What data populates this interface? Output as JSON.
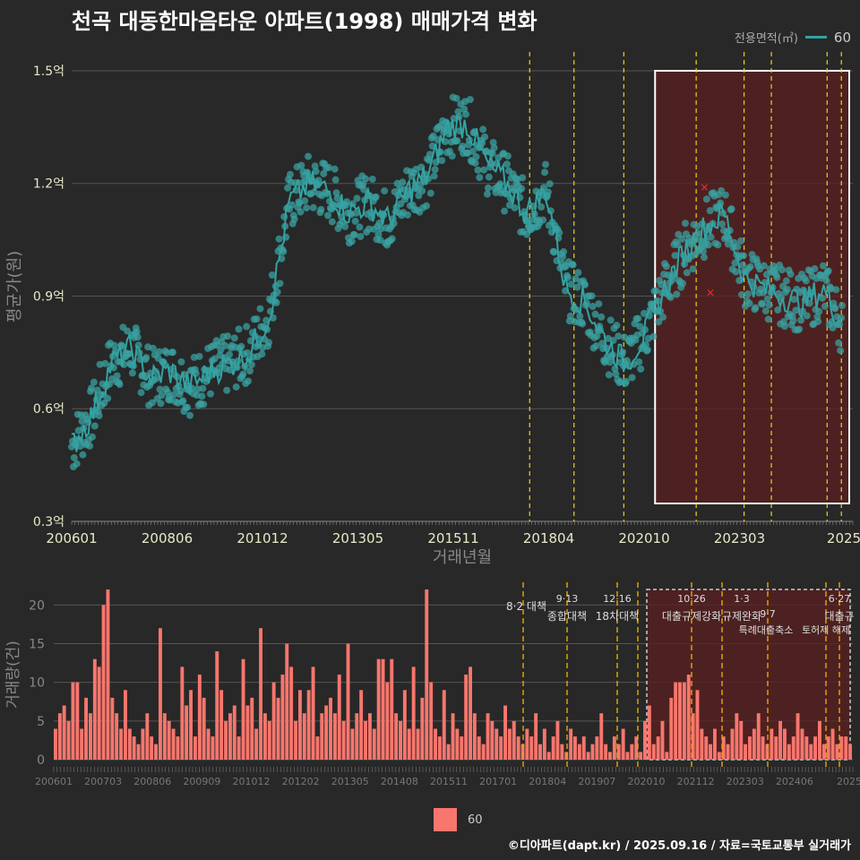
{
  "title": "천곡 대동한마음타운 아파트(1998) 매매가격 변화",
  "legend": {
    "title": "전용면적(㎡)",
    "label": "60"
  },
  "footer": "©디아파트(dapt.kr) / 2025.09.16 / 자료=국토교통부 실거래가",
  "colors": {
    "line": "#33a3a3",
    "point": "#3aa0a0",
    "bar": "#f8766d",
    "policy": "#e8d21d",
    "highlight": "#5a1f1f",
    "grid": "#555555"
  },
  "chart_data": [
    {
      "type": "line",
      "title": "천곡 대동한마음타운 아파트(1998) 매매가격 변화",
      "xlabel": "거래년월",
      "ylabel": "평균가(원)",
      "x_tick_labels": [
        "200601",
        "200806",
        "201012",
        "201305",
        "201511",
        "201804",
        "202010",
        "202303",
        "2025"
      ],
      "y_tick_labels": [
        "0.3억",
        "0.6억",
        "0.9억",
        "1.2억",
        "1.5억"
      ],
      "ylim": [
        0.3,
        1.55
      ],
      "xlim": [
        2006.0,
        2025.75
      ],
      "highlight_range": [
        2020.75,
        2025.75
      ],
      "policy_lines": [
        2017.58,
        2018.7,
        2019.96,
        2021.79,
        2023.0,
        2023.69,
        2025.1,
        2025.46
      ],
      "series": [
        {
          "name": "60",
          "x": [
            2006.0,
            2006.5,
            2007.0,
            2007.5,
            2008.0,
            2008.5,
            2009.0,
            2009.5,
            2010.0,
            2010.5,
            2011.0,
            2011.5,
            2012.0,
            2012.5,
            2013.0,
            2013.5,
            2014.0,
            2014.5,
            2015.0,
            2015.5,
            2016.0,
            2016.5,
            2017.0,
            2017.5,
            2018.0,
            2018.5,
            2019.0,
            2019.5,
            2020.0,
            2020.5,
            2021.0,
            2021.5,
            2022.0,
            2022.5,
            2023.0,
            2023.5,
            2024.0,
            2024.5,
            2025.0,
            2025.5
          ],
          "values": [
            0.5,
            0.58,
            0.72,
            0.76,
            0.68,
            0.7,
            0.66,
            0.7,
            0.72,
            0.75,
            0.85,
            1.15,
            1.2,
            1.18,
            1.12,
            1.15,
            1.1,
            1.18,
            1.22,
            1.35,
            1.36,
            1.25,
            1.2,
            1.12,
            1.18,
            0.92,
            0.88,
            0.78,
            0.72,
            0.8,
            0.92,
            1.02,
            1.08,
            1.12,
            0.95,
            0.92,
            0.9,
            0.88,
            0.92,
            0.82
          ]
        }
      ],
      "outliers": [
        {
          "x": 2022.0,
          "y": 1.19
        },
        {
          "x": 2022.15,
          "y": 0.91
        }
      ]
    },
    {
      "type": "bar",
      "ylabel": "거래량(건)",
      "x_tick_labels": [
        "200601",
        "200703",
        "200806",
        "200909",
        "201012",
        "201202",
        "201305",
        "201408",
        "201511",
        "201701",
        "201804",
        "201907",
        "202010",
        "202112",
        "202303",
        "202406",
        "2025"
      ],
      "y_tick_labels": [
        "0",
        "5",
        "10",
        "15",
        "20"
      ],
      "ylim": [
        0,
        22
      ],
      "series": [
        {
          "name": "60",
          "values": [
            4,
            6,
            7,
            5,
            10,
            10,
            4,
            8,
            6,
            13,
            12,
            20,
            22,
            8,
            6,
            4,
            9,
            4,
            3,
            2,
            4,
            6,
            3,
            2,
            17,
            6,
            5,
            4,
            3,
            12,
            7,
            9,
            3,
            11,
            8,
            4,
            3,
            14,
            9,
            5,
            6,
            7,
            3,
            13,
            7,
            8,
            4,
            17,
            6,
            5,
            10,
            8,
            11,
            15,
            12,
            5,
            9,
            6,
            9,
            12,
            3,
            6,
            7,
            8,
            6,
            11,
            5,
            15,
            4,
            6,
            9,
            5,
            6,
            4,
            13,
            13,
            10,
            13,
            6,
            5,
            9,
            4,
            12,
            4,
            8,
            22,
            10,
            4,
            3,
            9,
            2,
            6,
            4,
            3,
            11,
            12,
            6,
            3,
            2,
            6,
            5,
            4,
            3,
            7,
            4,
            5,
            3,
            2,
            4,
            3,
            6,
            2,
            4,
            1,
            3,
            5,
            2,
            1,
            4,
            3,
            2,
            3,
            1,
            2,
            3,
            6,
            2,
            1,
            3,
            2,
            4,
            1,
            2,
            3,
            1,
            5,
            7,
            2,
            3,
            5,
            1,
            8,
            10,
            10,
            10,
            11,
            6,
            9,
            4,
            3,
            2,
            4,
            1,
            3,
            2,
            4,
            6,
            5,
            2,
            3,
            4,
            6,
            3,
            2,
            4,
            3,
            5,
            4,
            2,
            3,
            6,
            4,
            3,
            2,
            3,
            5,
            2,
            3,
            4,
            2,
            3,
            3,
            2
          ]
        }
      ],
      "policy_labels": [
        {
          "date": "8·2",
          "name": "대책"
        },
        {
          "date": "9·13",
          "name": "종합대책"
        },
        {
          "date": "12·16",
          "name": "18차대책"
        },
        {
          "date": "10·26",
          "name": "대출규제강화"
        },
        {
          "date": "1·3",
          "name": "규제완화"
        },
        {
          "date": "9·7",
          "name": "특례대출축소"
        },
        {
          "date": "",
          "name": "토허제 해제"
        },
        {
          "date": "6·27",
          "name": "대출규"
        }
      ]
    }
  ]
}
